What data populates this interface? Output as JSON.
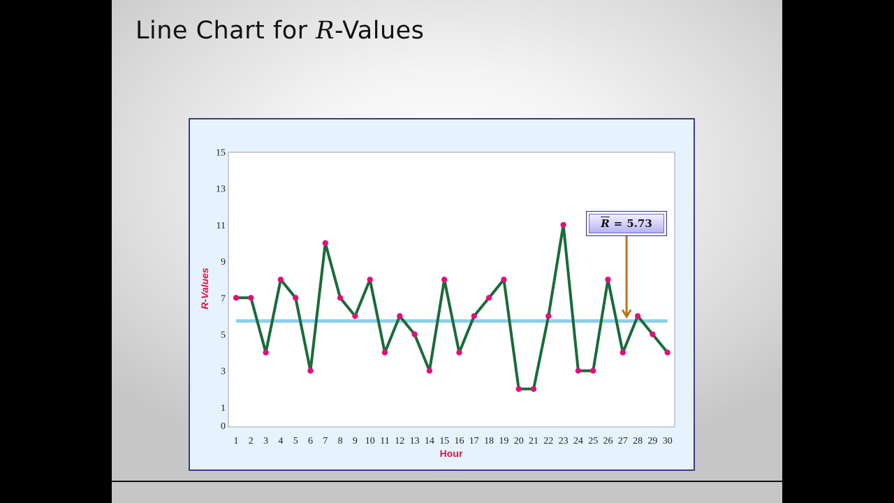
{
  "slide": {
    "title_prefix": "Line Chart for ",
    "title_italic": "R",
    "title_suffix": "-Values"
  },
  "annotation": {
    "symbol": "R",
    "equals": "=",
    "value": "5.73"
  },
  "colors": {
    "line": "#1a6b38",
    "points": "#e0107a",
    "mean_line": "#8fd0ea",
    "arrow": "#b8761a",
    "axis_titles": "#e0103d",
    "frame_border": "#3b3a8a",
    "frame_background": "#e6f2fd"
  },
  "chart_data": {
    "type": "line",
    "xlabel": "Hour",
    "ylabel": "R-Values",
    "x": [
      1,
      2,
      3,
      4,
      5,
      6,
      7,
      8,
      9,
      10,
      11,
      12,
      13,
      14,
      15,
      16,
      17,
      18,
      19,
      20,
      21,
      22,
      23,
      24,
      25,
      26,
      27,
      28,
      29,
      30
    ],
    "series": [
      {
        "values": [
          7,
          7,
          4,
          8,
          7,
          3,
          10,
          7,
          6,
          8,
          4,
          6,
          5,
          3,
          8,
          4,
          6,
          7,
          8,
          2,
          2,
          6,
          11,
          3,
          3,
          8,
          4,
          6,
          5,
          4
        ]
      }
    ],
    "mean_line": {
      "label": "R̄ = 5.73",
      "value": 5.73
    },
    "yticks": [
      0,
      1,
      3,
      5,
      7,
      9,
      11,
      13,
      15
    ],
    "ylim": [
      0,
      15
    ],
    "xlim": [
      1,
      30
    ],
    "grid": false,
    "legend": "none"
  }
}
